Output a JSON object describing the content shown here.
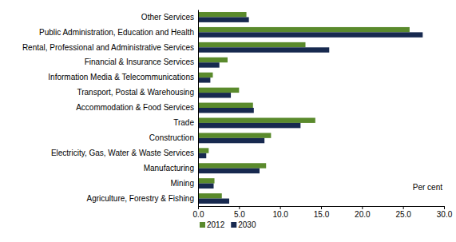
{
  "chart_data": {
    "type": "bar",
    "orientation": "horizontal",
    "categories": [
      "Other Services",
      "Public Administration, Education and Health",
      "Rental, Professional and Administrative Services",
      "Financial & Insurance Services",
      "Information Media & Telecommunications",
      "Transport, Postal & Warehousing",
      "Accommodation & Food Services",
      "Trade",
      "Construction",
      "Electricity, Gas, Water & Waste Services",
      "Manufacturing",
      "Mining",
      "Agriculture, Forestry & Fishing"
    ],
    "series": [
      {
        "name": "2012",
        "color": "#5a8a2c",
        "values": [
          5.9,
          25.8,
          13.1,
          3.6,
          1.8,
          5.0,
          6.7,
          14.3,
          8.9,
          1.3,
          8.3,
          2.0,
          2.9
        ]
      },
      {
        "name": "2030",
        "color": "#17294f",
        "values": [
          6.2,
          27.4,
          16.0,
          2.6,
          1.5,
          4.0,
          6.8,
          12.5,
          8.1,
          1.0,
          7.5,
          1.9,
          3.8
        ]
      }
    ],
    "annotation": "Per cent",
    "xlim": [
      0,
      30
    ],
    "xticks": [
      {
        "value": 0,
        "label": "0.0"
      },
      {
        "value": 5,
        "label": "5.0"
      },
      {
        "value": 10,
        "label": "10.0"
      },
      {
        "value": 15,
        "label": "15.0"
      },
      {
        "value": 20,
        "label": "20.0"
      },
      {
        "value": 25,
        "label": "25.0"
      },
      {
        "value": 30,
        "label": "30.0"
      }
    ],
    "grid": false,
    "legend": "bottom-left"
  }
}
